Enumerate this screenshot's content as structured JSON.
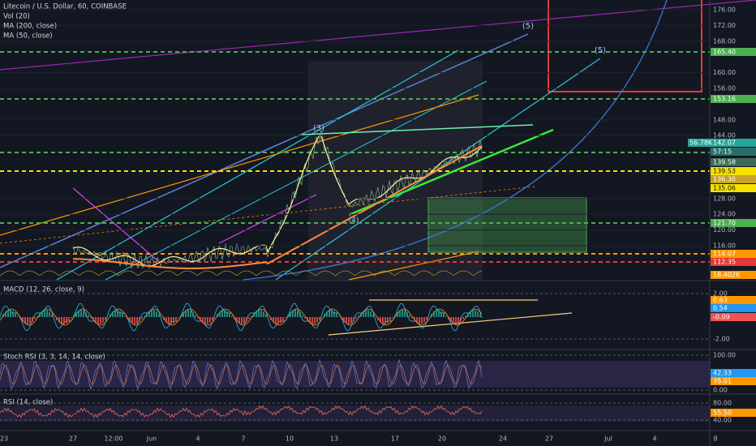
{
  "header": {
    "symbol": "Litecoin / U.S. Dollar, 60, COINBASE",
    "indicators": [
      "Vol (20)",
      "MA (200, close)",
      "MA (50, close)"
    ]
  },
  "price_axis": {
    "labels": [
      "176.00",
      "172.00",
      "168.00",
      "160.00",
      "156.00",
      "148.00",
      "144.00",
      "128.00",
      "124.00",
      "120.00",
      "116.00"
    ],
    "tags": [
      {
        "text": "165.40",
        "color": "#4caf50"
      },
      {
        "text": "153.16",
        "color": "#4caf50"
      },
      {
        "text": "142.07",
        "color": "#26a69a"
      },
      {
        "text": "57:15",
        "color": "#2a6e6a"
      },
      {
        "text": "139.58",
        "color": "#3b6b55"
      },
      {
        "text": "139.53",
        "color": "#f5e200"
      },
      {
        "text": "136.30",
        "color": "#c9a227"
      },
      {
        "text": "135.06",
        "color": "#f5e200"
      },
      {
        "text": "121.70",
        "color": "#4caf50"
      },
      {
        "text": "114.07",
        "color": "#ff9800"
      },
      {
        "text": "112.35",
        "color": "#e53935"
      },
      {
        "text": "18.402K",
        "color": "#ff9800"
      }
    ],
    "volume_tag": "56.78K"
  },
  "panes": [
    {
      "title": "MACD (12, 26, close, 9)",
      "labels": [
        "2.00",
        "-2.00"
      ],
      "tags": [
        {
          "text": "0.63",
          "color": "#ff9800"
        },
        {
          "text": "0.54",
          "color": "#2196f3"
        },
        {
          "text": "-0.09",
          "color": "#ef5350"
        }
      ]
    },
    {
      "title": "Stoch RSI (3, 3, 14, 14, close)",
      "labels": [
        "100.00",
        "0.00"
      ],
      "tags": [
        {
          "text": "42.33",
          "color": "#2196f3"
        },
        {
          "text": "35.01",
          "color": "#ff9800"
        }
      ]
    },
    {
      "title": "RSI (14, close)",
      "labels": [
        "80.00",
        "40.00"
      ],
      "tags": [
        {
          "text": "55.50",
          "color": "#ff9800"
        }
      ]
    }
  ],
  "time_axis": [
    "23",
    "27",
    "12:00",
    "Jun",
    "4",
    "7",
    "10",
    "13",
    "17",
    "20",
    "24",
    "27",
    "Jul",
    "4",
    "8"
  ],
  "annotations": [
    "(3)",
    "(5)",
    "(5)",
    "(4)"
  ]
}
